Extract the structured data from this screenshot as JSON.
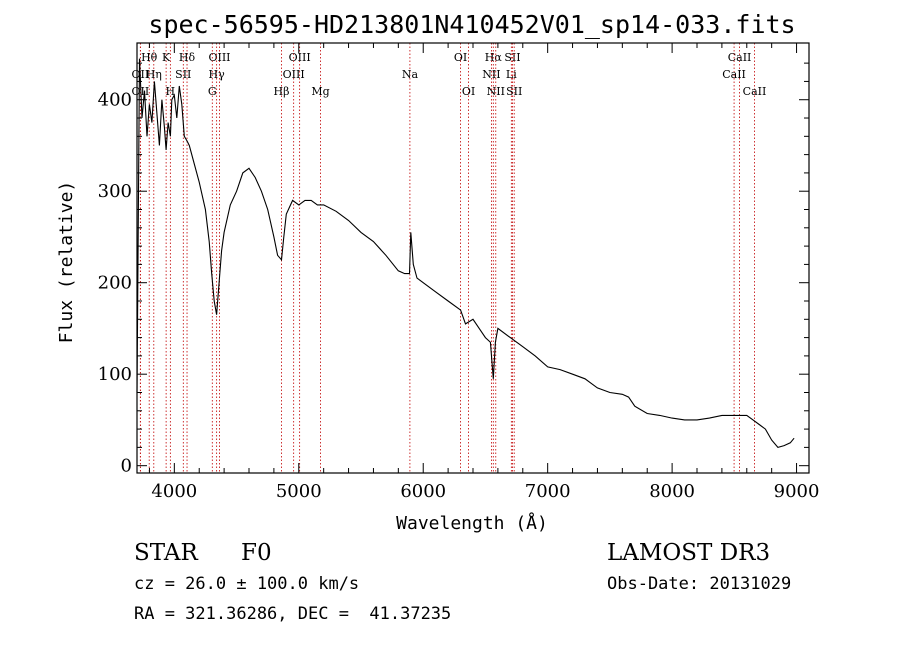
{
  "chart_data": {
    "type": "line",
    "title": "spec-56595-HD213801N410452V01_sp14-033.fits",
    "xlabel": "Wavelength (Å)",
    "ylabel": "Flux (relative)",
    "xlim": [
      3700,
      9100
    ],
    "ylim": [
      -8,
      462
    ],
    "x_ticks": [
      4000,
      5000,
      6000,
      7000,
      8000,
      9000
    ],
    "y_ticks": [
      0,
      100,
      200,
      300,
      400
    ],
    "grid": false,
    "series": [
      {
        "name": "flux",
        "x": [
          3700,
          3720,
          3740,
          3760,
          3780,
          3800,
          3820,
          3840,
          3860,
          3880,
          3900,
          3920,
          3934,
          3950,
          3968,
          3980,
          4000,
          4020,
          4040,
          4060,
          4080,
          4102,
          4120,
          4150,
          4200,
          4250,
          4280,
          4300,
          4320,
          4340,
          4360,
          4380,
          4400,
          4450,
          4500,
          4550,
          4600,
          4650,
          4700,
          4750,
          4800,
          4830,
          4861,
          4880,
          4900,
          4950,
          5000,
          5050,
          5100,
          5150,
          5200,
          5300,
          5400,
          5500,
          5600,
          5700,
          5800,
          5850,
          5890,
          5900,
          5920,
          5950,
          6000,
          6100,
          6200,
          6300,
          6340,
          6400,
          6450,
          6500,
          6540,
          6563,
          6580,
          6600,
          6700,
          6800,
          6900,
          7000,
          7100,
          7200,
          7300,
          7400,
          7500,
          7600,
          7650,
          7700,
          7800,
          7900,
          8000,
          8100,
          8200,
          8300,
          8400,
          8500,
          8600,
          8650,
          8700,
          8750,
          8800,
          8850,
          8900,
          8950,
          8980
        ],
        "y": [
          80,
          445,
          380,
          410,
          360,
          395,
          375,
          420,
          385,
          350,
          400,
          370,
          345,
          375,
          360,
          400,
          405,
          380,
          415,
          395,
          360,
          355,
          350,
          335,
          310,
          280,
          245,
          210,
          180,
          165,
          200,
          235,
          255,
          285,
          300,
          320,
          325,
          315,
          300,
          280,
          250,
          230,
          225,
          250,
          275,
          290,
          285,
          290,
          290,
          285,
          285,
          278,
          268,
          255,
          245,
          230,
          213,
          210,
          210,
          255,
          220,
          205,
          200,
          190,
          180,
          170,
          155,
          160,
          150,
          140,
          135,
          95,
          135,
          150,
          140,
          130,
          120,
          108,
          105,
          100,
          95,
          85,
          80,
          78,
          75,
          65,
          57,
          55,
          52,
          50,
          50,
          52,
          55,
          55,
          55,
          50,
          45,
          40,
          28,
          20,
          22,
          25,
          30
        ]
      }
    ],
    "lines": [
      {
        "name": "Hθ",
        "wl": 3798,
        "row": 0
      },
      {
        "name": "OII",
        "wl": 3727,
        "row": 1
      },
      {
        "name": "OII",
        "wl": 3727,
        "row": 2
      },
      {
        "name": "Hη",
        "wl": 3835,
        "row": 1
      },
      {
        "name": "K",
        "wl": 3934,
        "row": 0
      },
      {
        "name": "H",
        "wl": 3968,
        "row": 2
      },
      {
        "name": "SII",
        "wl": 4072,
        "row": 1
      },
      {
        "name": "Hδ",
        "wl": 4102,
        "row": 0
      },
      {
        "name": "OIII",
        "wl": 4363,
        "row": 0
      },
      {
        "name": "Hγ",
        "wl": 4340,
        "row": 1
      },
      {
        "name": "G",
        "wl": 4305,
        "row": 2
      },
      {
        "name": "Hβ",
        "wl": 4861,
        "row": 2
      },
      {
        "name": "OIII",
        "wl": 5007,
        "row": 0
      },
      {
        "name": "OIII",
        "wl": 4959,
        "row": 1
      },
      {
        "name": "Mg",
        "wl": 5175,
        "row": 2
      },
      {
        "name": "Na",
        "wl": 5893,
        "row": 1
      },
      {
        "name": "OI",
        "wl": 6300,
        "row": 0
      },
      {
        "name": "OI",
        "wl": 6364,
        "row": 2
      },
      {
        "name": "Hα",
        "wl": 6563,
        "row": 0
      },
      {
        "name": "NII",
        "wl": 6548,
        "row": 1
      },
      {
        "name": "NII",
        "wl": 6583,
        "row": 2
      },
      {
        "name": "SII",
        "wl": 6717,
        "row": 0
      },
      {
        "name": "Li",
        "wl": 6708,
        "row": 1
      },
      {
        "name": "SII",
        "wl": 6731,
        "row": 2
      },
      {
        "name": "CaII",
        "wl": 8542,
        "row": 0
      },
      {
        "name": "CaII",
        "wl": 8498,
        "row": 1
      },
      {
        "name": "CaII",
        "wl": 8662,
        "row": 2
      }
    ]
  },
  "info": {
    "class_label": "STAR",
    "subclass": "F0",
    "survey": "LAMOST DR3",
    "cz": "cz = 26.0 ± 100.0 km/s",
    "obs_date": "Obs-Date: 20131029",
    "coords": "RA = 321.36286, DEC =  41.37235"
  }
}
